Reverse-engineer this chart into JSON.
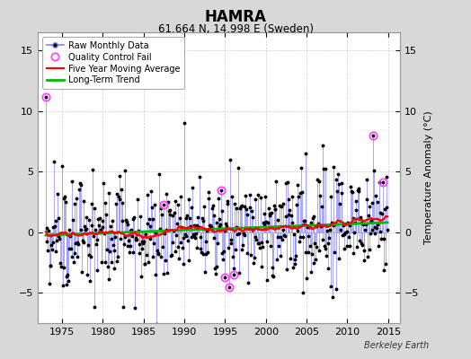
{
  "title": "HAMRA",
  "subtitle": "61.664 N, 14.998 E (Sweden)",
  "ylabel_right": "Temperature Anomaly (°C)",
  "xlim": [
    1972.0,
    2016.5
  ],
  "ylim": [
    -7.5,
    16.5
  ],
  "yticks": [
    -5,
    0,
    5,
    10,
    15
  ],
  "xticks": [
    1975,
    1980,
    1985,
    1990,
    1995,
    2000,
    2005,
    2010,
    2015
  ],
  "background_color": "#d8d8d8",
  "plot_bg_color": "#ffffff",
  "raw_line_color": "#8888ff",
  "raw_dot_color": "#000000",
  "moving_avg_color": "#ff0000",
  "trend_color": "#00bb00",
  "qc_fail_color": "#ff44ff",
  "watermark": "Berkeley Earth",
  "legend_entries": [
    "Raw Monthly Data",
    "Quality Control Fail",
    "Five Year Moving Average",
    "Long-Term Trend"
  ],
  "seed": 42,
  "start_year": 1973.0,
  "end_year": 2014.917
}
